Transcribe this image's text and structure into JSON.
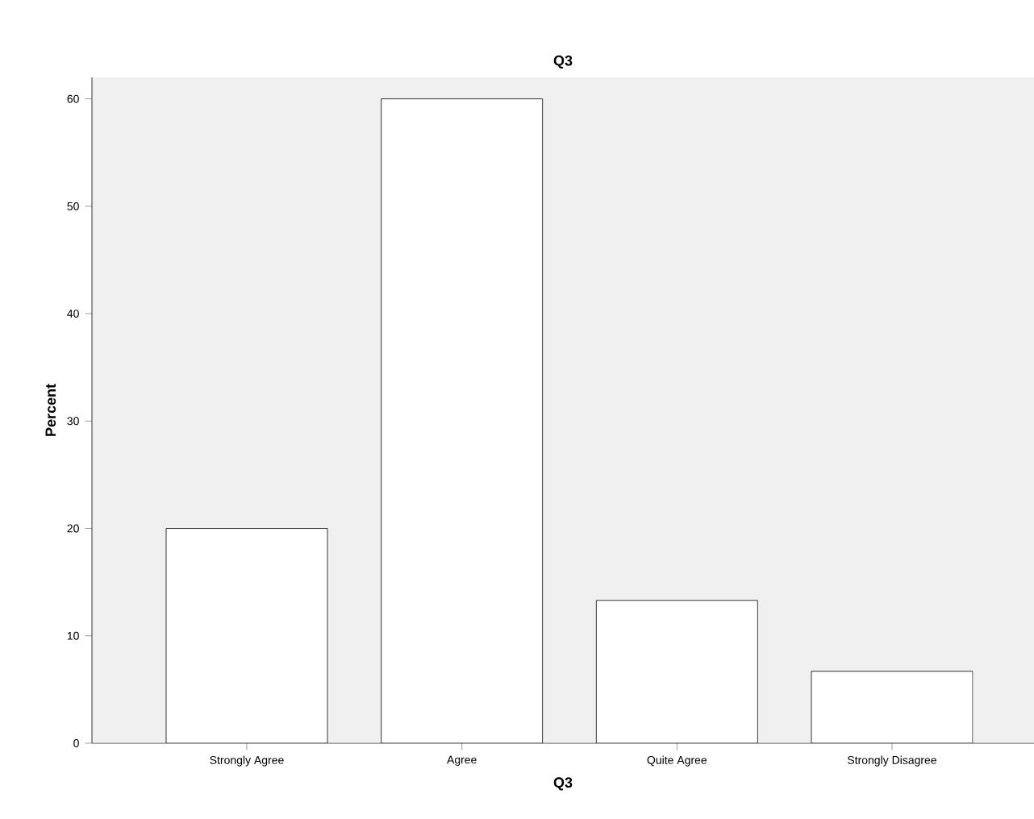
{
  "chart_data": {
    "type": "bar",
    "title": "Q3",
    "xlabel": "Q3",
    "ylabel": "Percent",
    "categories": [
      "Strongly Agree",
      "Agree",
      "Quite Agree",
      "Strongly Disagree"
    ],
    "values": [
      20,
      60,
      13.3,
      6.7
    ],
    "color": "#ffffff",
    "ylim": [
      0,
      62
    ],
    "yticks": [
      0,
      10,
      20,
      30,
      40,
      50,
      60
    ],
    "grid": false
  }
}
